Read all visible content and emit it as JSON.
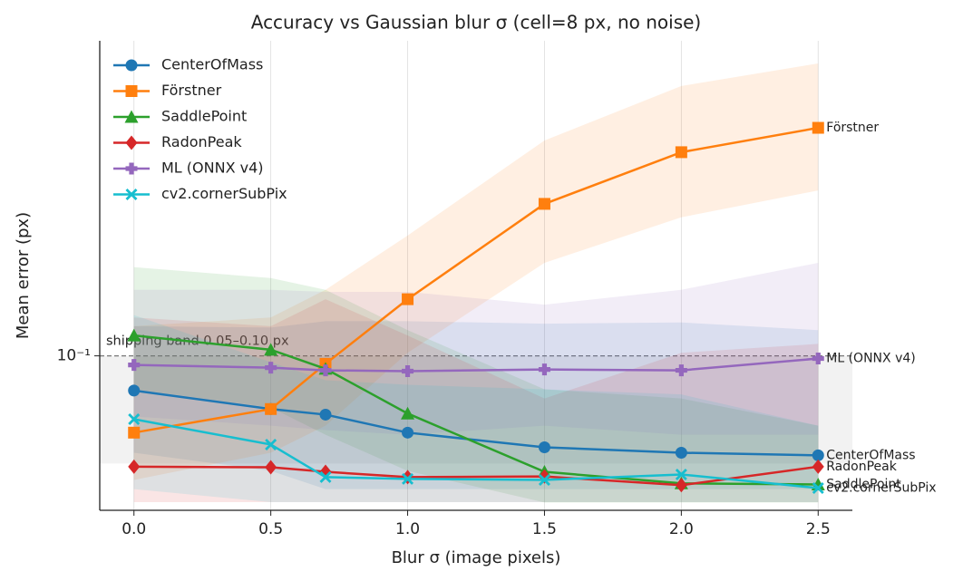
{
  "chart_data": {
    "type": "line",
    "title": "Accuracy vs Gaussian blur σ (cell=8 px, no noise)",
    "xlabel": "Blur σ (image pixels)",
    "ylabel": "Mean error (px)",
    "x": [
      0.0,
      0.5,
      0.7,
      1.0,
      1.5,
      2.0,
      2.5
    ],
    "xlim": [
      -0.125,
      2.625
    ],
    "xticks": [
      {
        "value": 0,
        "label": "0.0"
      },
      0.5,
      {
        "value": 1,
        "label": "1.0"
      },
      1.5,
      {
        "value": 2,
        "label": "2.0"
      },
      2.5
    ],
    "ylim": [
      0.037,
      0.76
    ],
    "yticks": [
      {
        "value": 0.1,
        "label": "10⁻¹"
      }
    ],
    "ylog": true,
    "xgrid": true,
    "legend": "upper-left",
    "reference_band": [
      0.05,
      0.1
    ],
    "reference_label": "shipping band 0.05–0.10 px",
    "series": [
      {
        "name": "CenterOfMass",
        "color": "#1f77b4",
        "marker": "circle",
        "values": [
          0.08,
          0.071,
          0.0685,
          0.061,
          0.0555,
          0.0536,
          0.0527
        ],
        "lower": [
          0.0536,
          0.0477,
          0.0424,
          0.0424,
          0.0424,
          0.0424,
          0.0424
        ],
        "upper": [
          0.121,
          0.12,
          0.125,
          0.125,
          0.123,
          0.124,
          0.118
        ]
      },
      {
        "name": "Förstner",
        "color": "#ff7f0e",
        "marker": "square",
        "values": [
          0.061,
          0.071,
          0.095,
          0.144,
          0.266,
          0.371,
          0.434
        ],
        "lower": [
          0.045,
          0.0536,
          0.0638,
          0.102,
          0.182,
          0.244,
          0.29
        ],
        "upper": [
          0.121,
          0.128,
          0.153,
          0.217,
          0.4,
          0.568,
          0.657
        ]
      },
      {
        "name": "SaddlePoint",
        "color": "#2ca02c",
        "marker": "triangle",
        "values": [
          0.114,
          0.104,
          0.092,
          0.069,
          0.0474,
          0.044,
          0.0437
        ],
        "lower": [
          0.0806,
          0.0717,
          0.0602,
          0.0477,
          0.0389,
          0.0389,
          0.0389
        ],
        "upper": [
          0.177,
          0.165,
          0.153,
          0.118,
          0.0806,
          0.076,
          0.0638
        ]
      },
      {
        "name": "RadonPeak",
        "color": "#d62728",
        "marker": "diamond",
        "values": [
          0.049,
          0.0488,
          0.0474,
          0.0458,
          0.046,
          0.0435,
          0.049
        ],
        "lower": [
          0.039,
          0.039,
          0.039,
          0.039,
          0.039,
          0.039,
          0.039
        ],
        "upper": [
          0.128,
          0.121,
          0.144,
          0.114,
          0.076,
          0.102,
          0.108
        ]
      },
      {
        "name": "ML (ONNX v4)",
        "color": "#9467bd",
        "marker": "plus",
        "values": [
          0.0943,
          0.0927,
          0.0911,
          0.0906,
          0.0916,
          0.0911,
          0.0983
        ],
        "lower": [
          0.0677,
          0.0638,
          0.062,
          0.0602,
          0.0638,
          0.0602,
          0.0602
        ],
        "upper": [
          0.153,
          0.153,
          0.151,
          0.151,
          0.139,
          0.153,
          0.182
        ]
      },
      {
        "name": "cv2.cornerSubPix",
        "color": "#17becf",
        "marker": "x",
        "values": [
          0.0665,
          0.0565,
          0.0458,
          0.0453,
          0.045,
          0.0466,
          0.0427
        ],
        "lower": [
          0.0424,
          0.039,
          0.039,
          0.039,
          0.039,
          0.039,
          0.039
        ],
        "upper": [
          0.13,
          0.096,
          0.0855,
          0.083,
          0.0806,
          0.078,
          0.0638
        ]
      }
    ]
  }
}
